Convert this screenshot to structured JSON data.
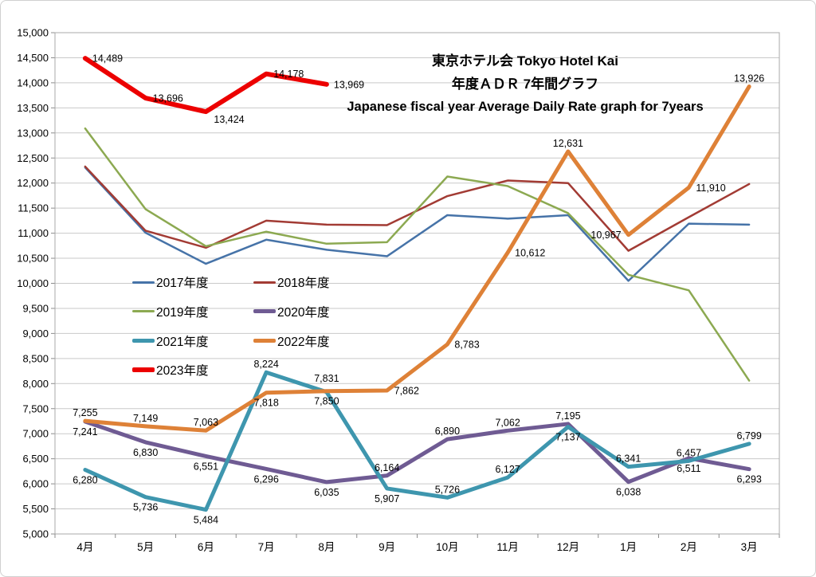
{
  "chart": {
    "title_line1": "東京ホテル会 Tokyo Hotel Kai",
    "title_line2": "年度ＡＤＲ 7年間グラフ",
    "title_line3": "Japanese fiscal year Average Daily Rate graph for 7years"
  },
  "chart_data": {
    "type": "line",
    "title": "東京ホテル会 Tokyo Hotel Kai 年度ＡＤＲ 7年間グラフ Japanese fiscal year Average Daily Rate graph for 7years",
    "title_line1": "東京ホテル会 Tokyo Hotel Kai",
    "title_line2": "年度ＡＤＲ 7年間グラフ",
    "title_line3": "Japanese fiscal year Average Daily Rate graph for 7years",
    "categories": [
      "4月",
      "5月",
      "6月",
      "7月",
      "8月",
      "9月",
      "10月",
      "11月",
      "12月",
      "1月",
      "2月",
      "3月"
    ],
    "y_axis": {
      "min": 5000,
      "max": 15000,
      "step": 500
    },
    "y_tick_labels": [
      "5,000",
      "5,500",
      "6,000",
      "6,500",
      "7,000",
      "7,500",
      "8,000",
      "8,500",
      "9,000",
      "9,500",
      "10,000",
      "10,500",
      "11,000",
      "11,500",
      "12,000",
      "12,500",
      "13,000",
      "13,500",
      "14,000",
      "14,500",
      "15,000"
    ],
    "grid": true,
    "legend_position": "inside-left, two columns, below title area",
    "series": [
      {
        "name": "2017年度",
        "color": "#4673A8",
        "width": 2.5,
        "labeled": false,
        "values": [
          12310,
          11010,
          10390,
          10870,
          10670,
          10540,
          11360,
          11290,
          11360,
          10050,
          11190,
          11170
        ]
      },
      {
        "name": "2018年度",
        "color": "#A23B34",
        "width": 2.5,
        "labeled": false,
        "values": [
          12330,
          11050,
          10710,
          11250,
          11170,
          11160,
          11740,
          12050,
          12000,
          10650,
          11320,
          11980
        ]
      },
      {
        "name": "2019年度",
        "color": "#8CA951",
        "width": 2.5,
        "labeled": false,
        "values": [
          13090,
          11480,
          10740,
          11030,
          10790,
          10820,
          12130,
          11940,
          11400,
          10170,
          9860,
          8060
        ]
      },
      {
        "name": "2020年度",
        "color": "#6F5B93",
        "width": 5,
        "labeled": true,
        "values": [
          7241,
          6830,
          6551,
          6296,
          6035,
          6164,
          6890,
          7062,
          7195,
          6038,
          6511,
          6293
        ],
        "label_pos": [
          "b",
          "b",
          "b",
          "b",
          "b",
          "a",
          "a",
          "a",
          "a",
          "b",
          "b",
          "b"
        ]
      },
      {
        "name": "2021年度",
        "color": "#3E96AE",
        "width": 5,
        "labeled": true,
        "values": [
          6280,
          5736,
          5484,
          8224,
          7831,
          5907,
          5726,
          6127,
          7137,
          6341,
          6457,
          6799
        ],
        "label_pos": [
          "b",
          "b",
          "b",
          "a",
          "aa",
          "b",
          "a",
          "a",
          "b",
          "a",
          "a",
          "a"
        ]
      },
      {
        "name": "2022年度",
        "color": "#DE8137",
        "width": 5,
        "labeled": true,
        "values": [
          7255,
          7149,
          7063,
          7818,
          7850,
          7862,
          8783,
          10612,
          12631,
          10967,
          11910,
          13926
        ],
        "label_pos": [
          "a",
          "a",
          "a",
          "b",
          "b",
          "r",
          "r",
          "r",
          "a",
          "l",
          "r",
          "a"
        ]
      },
      {
        "name": "2023年度",
        "color": "#EC0000",
        "width": 6,
        "labeled": true,
        "values": [
          14489,
          13696,
          13424,
          14178,
          13969
        ],
        "label_pos": [
          "r",
          "r",
          "br",
          "r",
          "r"
        ]
      }
    ]
  }
}
